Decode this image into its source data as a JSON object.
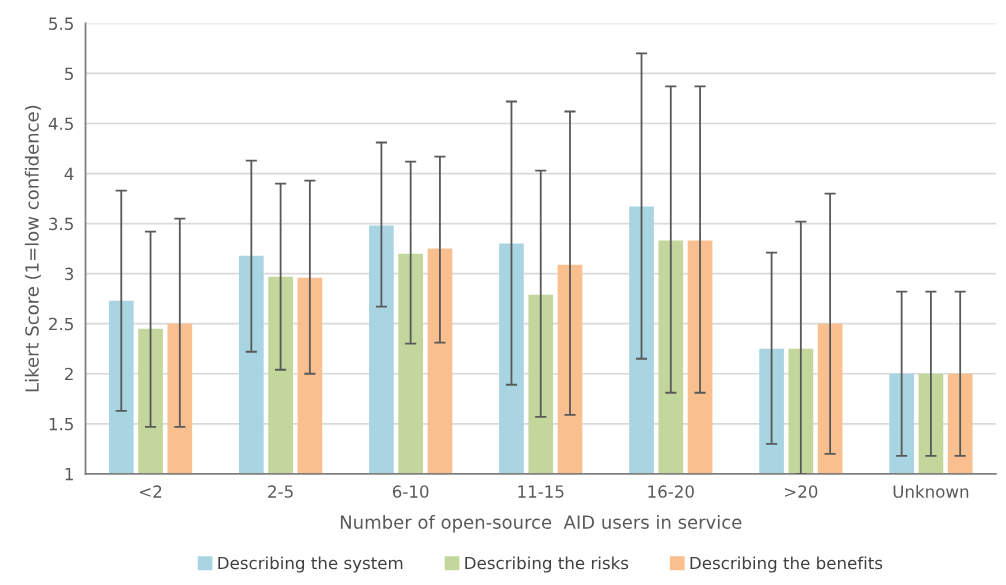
{
  "chart_data": {
    "type": "bar",
    "xlabel": "Number of open-source  AID users in service",
    "ylabel": "Likert Score (1=low confidence)",
    "categories": [
      "<2",
      "2-5",
      "6-10",
      "11-15",
      "16-20",
      ">20",
      "Unknown"
    ],
    "series": [
      {
        "name": "Describing the system",
        "color": "#a9d5e3",
        "values": [
          2.73,
          3.18,
          3.48,
          3.3,
          3.67,
          2.25,
          2.0
        ],
        "errors": [
          [
            1.63,
            3.83
          ],
          [
            2.22,
            4.13
          ],
          [
            2.67,
            4.31
          ],
          [
            1.89,
            4.72
          ],
          [
            2.15,
            5.2
          ],
          [
            1.3,
            3.21
          ],
          [
            1.18,
            2.82
          ]
        ]
      },
      {
        "name": "Describing the risks",
        "color": "#c3d69b",
        "values": [
          2.45,
          2.97,
          3.2,
          2.79,
          3.33,
          2.25,
          2.0
        ],
        "errors": [
          [
            1.47,
            3.42
          ],
          [
            2.04,
            3.9
          ],
          [
            2.3,
            4.12
          ],
          [
            1.57,
            4.03
          ],
          [
            1.81,
            4.87
          ],
          [
            1.0,
            3.52
          ],
          [
            1.18,
            2.82
          ]
        ]
      },
      {
        "name": "Describing the benefits",
        "color": "#f9bf8f",
        "values": [
          2.5,
          2.96,
          3.25,
          3.09,
          3.33,
          2.5,
          2.0
        ],
        "errors": [
          [
            1.47,
            3.55
          ],
          [
            2.0,
            3.93
          ],
          [
            2.31,
            4.17
          ],
          [
            1.59,
            4.62
          ],
          [
            1.81,
            4.87
          ],
          [
            1.2,
            3.8
          ],
          [
            1.18,
            2.82
          ]
        ]
      }
    ],
    "ylim": [
      1,
      5.5
    ],
    "yticks": [
      1,
      1.5,
      2,
      2.5,
      3,
      3.5,
      4,
      4.5,
      5,
      5.5
    ],
    "grid": "y",
    "legend": "bottom"
  }
}
